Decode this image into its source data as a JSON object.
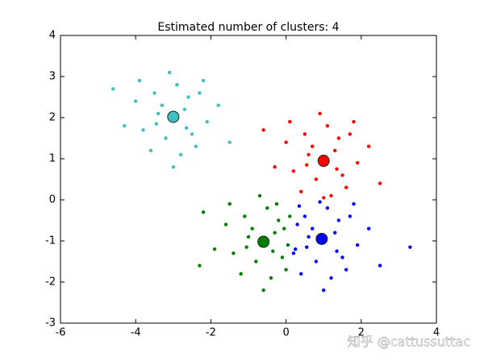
{
  "chart_data": {
    "type": "scatter",
    "title": "Estimated number of clusters: 4",
    "xlim": [
      -6,
      4
    ],
    "xticks": [
      -6,
      -4,
      -2,
      0,
      2,
      4
    ],
    "ylim": [
      -3,
      4
    ],
    "yticks": [
      -3,
      -2,
      -1,
      0,
      1,
      2,
      3,
      4
    ],
    "series": [
      {
        "color": "#3fbfbf",
        "x": [
          -3,
          -2.7,
          -3.4,
          -2.5,
          -3.2,
          -2.3,
          -3.8,
          -2.9,
          -3.5,
          -2.1,
          -4.0,
          -2.8,
          -3.3,
          -2.6,
          -3.6,
          -1.8,
          -4.3,
          -2.4,
          -3.1,
          -2.2,
          -3.9,
          -3.0,
          -2.65,
          -3.45,
          -1.5,
          -4.6
        ],
        "values": [
          2,
          2.2,
          2.1,
          1.6,
          1.5,
          2.6,
          1.7,
          2.8,
          2.6,
          1.9,
          2.4,
          1.1,
          2.3,
          2.5,
          1.2,
          2.3,
          1.8,
          1.3,
          3.1,
          2.9,
          2.9,
          0.8,
          1.75,
          1.85,
          1.4,
          2.7
        ],
        "center_x": -3,
        "center_y": 2.02
      },
      {
        "color": "#ff0000",
        "x": [
          1,
          1.3,
          0.6,
          1.5,
          0.8,
          1.7,
          0.2,
          1.1,
          0.5,
          1.9,
          0.0,
          1.2,
          0.7,
          1.4,
          0.4,
          2.2,
          -0.3,
          1.6,
          0.9,
          1.8,
          0.1,
          1.0,
          1.35,
          0.55,
          2.5,
          -0.6
        ],
        "values": [
          1,
          1.2,
          1.1,
          0.6,
          0.5,
          1.6,
          0.7,
          1.8,
          1.6,
          0.9,
          1.4,
          0.1,
          1.3,
          1.5,
          0.2,
          1.3,
          0.8,
          0.3,
          2.1,
          1.9,
          1.9,
          0.05,
          0.75,
          0.85,
          0.4,
          1.7
        ],
        "center_x": 1,
        "center_y": 0.95
      },
      {
        "color": "#007f00",
        "x": [
          -0.6,
          -0.3,
          -1.0,
          -0.1,
          -0.8,
          0.1,
          -1.4,
          -0.5,
          -1.1,
          0.05,
          -1.6,
          -0.4,
          -0.9,
          -0.2,
          -1.2,
          -0.05,
          -1.9,
          0.0,
          -0.7,
          -0.25,
          -1.5,
          -0.6,
          -0.35,
          -1.05,
          -2.3,
          -2.2
        ],
        "values": [
          -1,
          -0.8,
          -0.9,
          -1.4,
          -1.5,
          -0.4,
          -1.3,
          -0.2,
          -0.4,
          -1.1,
          -0.6,
          -1.9,
          -0.7,
          -0.5,
          -1.8,
          -0.7,
          -1.2,
          -1.7,
          0.1,
          -0.1,
          -0.1,
          -2.2,
          -1.25,
          -1.15,
          -1.6,
          -0.3
        ],
        "center_x": -0.6,
        "center_y": -1.02
      },
      {
        "color": "#0000ff",
        "x": [
          1,
          1.3,
          0.6,
          1.5,
          0.8,
          1.7,
          0.2,
          1.1,
          0.5,
          1.9,
          0.3,
          1.2,
          0.7,
          1.4,
          0.4,
          2.2,
          0.25,
          1.6,
          0.9,
          1.8,
          0.35,
          1.0,
          1.35,
          0.55,
          2.5,
          3.3
        ],
        "values": [
          -1,
          -0.8,
          -0.9,
          -1.4,
          -1.5,
          -0.4,
          -1.3,
          -0.2,
          -0.4,
          -1.1,
          -0.6,
          -1.9,
          -0.7,
          -0.5,
          -1.8,
          -0.7,
          -1.2,
          -1.7,
          -0.05,
          -0.1,
          -0.15,
          -2.2,
          -1.25,
          -1.15,
          -1.6,
          -1.15
        ],
        "center_x": 0.95,
        "center_y": -0.95
      }
    ]
  },
  "watermark": "知乎 @cattussuttac"
}
